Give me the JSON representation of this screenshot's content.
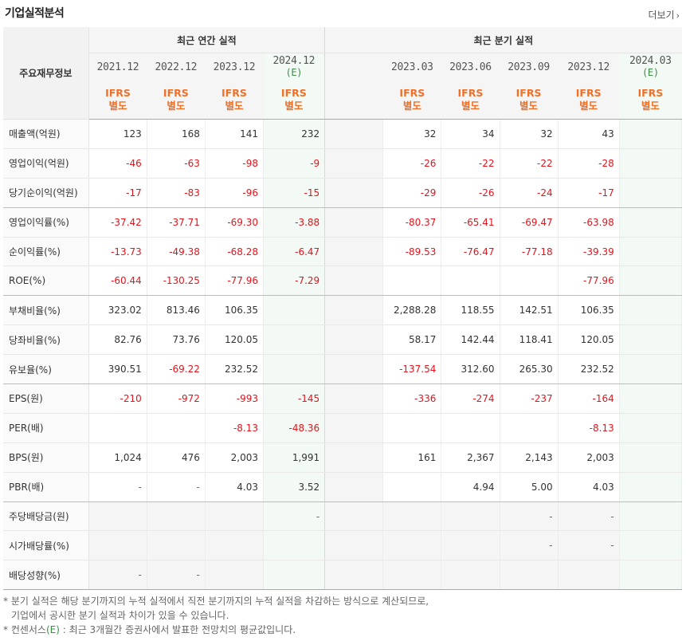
{
  "header": {
    "title": "기업실적분석",
    "more_label": "더보기",
    "more_icon": "chevron-right"
  },
  "table": {
    "row_header_label": "주요재무정보",
    "annual_group_label": "최근 연간 실적",
    "quarter_group_label": "최근 분기 실적",
    "annual_periods": [
      "2021.12",
      "2022.12",
      "2023.12",
      "2024.12"
    ],
    "annual_estimate_mark": "(E)",
    "quarter_periods": [
      "2023.03",
      "2023.06",
      "2023.09",
      "2023.12",
      "2024.03"
    ],
    "quarter_estimate_mark": "(E)",
    "standard_line1": "IFRS",
    "standard_line2": "별도",
    "rows": [
      {
        "label": "매출액(억원)",
        "annual": [
          "123",
          "168",
          "141",
          "232"
        ],
        "quarter": [
          "32",
          "34",
          "32",
          "43",
          ""
        ]
      },
      {
        "label": "영업이익(억원)",
        "annual": [
          "-46",
          "-63",
          "-98",
          "-9"
        ],
        "quarter": [
          "-26",
          "-22",
          "-22",
          "-28",
          ""
        ]
      },
      {
        "label": "당기순이익(억원)",
        "annual": [
          "-17",
          "-83",
          "-96",
          "-15"
        ],
        "quarter": [
          "-29",
          "-26",
          "-24",
          "-17",
          ""
        ]
      },
      {
        "label": "영업이익률(%)",
        "annual": [
          "-37.42",
          "-37.71",
          "-69.30",
          "-3.88"
        ],
        "quarter": [
          "-80.37",
          "-65.41",
          "-69.47",
          "-63.98",
          ""
        ]
      },
      {
        "label": "순이익률(%)",
        "annual": [
          "-13.73",
          "-49.38",
          "-68.28",
          "-6.47"
        ],
        "quarter": [
          "-89.53",
          "-76.47",
          "-77.18",
          "-39.39",
          ""
        ]
      },
      {
        "label": "ROE(%)",
        "annual": [
          "-60.44",
          "-130.25",
          "-77.96",
          "-7.29"
        ],
        "quarter": [
          "",
          "",
          "",
          "-77.96",
          ""
        ]
      },
      {
        "label": "부채비율(%)",
        "annual": [
          "323.02",
          "813.46",
          "106.35",
          ""
        ],
        "quarter": [
          "2,288.28",
          "118.55",
          "142.51",
          "106.35",
          ""
        ]
      },
      {
        "label": "당좌비율(%)",
        "annual": [
          "82.76",
          "73.76",
          "120.05",
          ""
        ],
        "quarter": [
          "58.17",
          "142.44",
          "118.41",
          "120.05",
          ""
        ]
      },
      {
        "label": "유보율(%)",
        "annual": [
          "390.51",
          "-69.22",
          "232.52",
          ""
        ],
        "quarter": [
          "-137.54",
          "312.60",
          "265.30",
          "232.52",
          ""
        ]
      },
      {
        "label": "EPS(원)",
        "annual": [
          "-210",
          "-972",
          "-993",
          "-145"
        ],
        "quarter": [
          "-336",
          "-274",
          "-237",
          "-164",
          ""
        ]
      },
      {
        "label": "PER(배)",
        "annual": [
          "",
          "",
          "-8.13",
          "-48.36"
        ],
        "quarter": [
          "",
          "",
          "",
          "-8.13",
          ""
        ]
      },
      {
        "label": "BPS(원)",
        "annual": [
          "1,024",
          "476",
          "2,003",
          "1,991"
        ],
        "quarter": [
          "161",
          "2,367",
          "2,143",
          "2,003",
          ""
        ]
      },
      {
        "label": "PBR(배)",
        "annual": [
          "-",
          "-",
          "4.03",
          "3.52"
        ],
        "quarter": [
          "",
          "4.94",
          "5.00",
          "4.03",
          ""
        ]
      },
      {
        "label": "주당배당금(원)",
        "annual": [
          "",
          "",
          "",
          "-"
        ],
        "quarter": [
          "",
          "",
          "-",
          "-",
          ""
        ]
      },
      {
        "label": "시가배당률(%)",
        "annual": [
          "",
          "",
          "",
          ""
        ],
        "quarter": [
          "",
          "",
          "-",
          "-",
          ""
        ]
      },
      {
        "label": "배당성향(%)",
        "annual": [
          "-",
          "-",
          "",
          ""
        ],
        "quarter": [
          "",
          "",
          "",
          "",
          ""
        ]
      }
    ]
  },
  "notes": {
    "line1": "* 분기 실적은 해당 분기까지의 누적 실적에서 직전 분기까지의 누적 실적을 차감하는 방식으로 계산되므로,",
    "line2": "기업에서 공시한 분기 실적과 차이가 있을 수 있습니다.",
    "line3_prefix": "* 컨센서스",
    "line3_mark": "(E)",
    "line3_suffix": " : 최근 3개월간 증권사에서 발표한 전망치의 평균값입니다."
  },
  "colors": {
    "negative": "#e4141c",
    "standard": "#f07028",
    "estimate": "#3a8f46",
    "estimate_bg": "#f3f9f4"
  }
}
